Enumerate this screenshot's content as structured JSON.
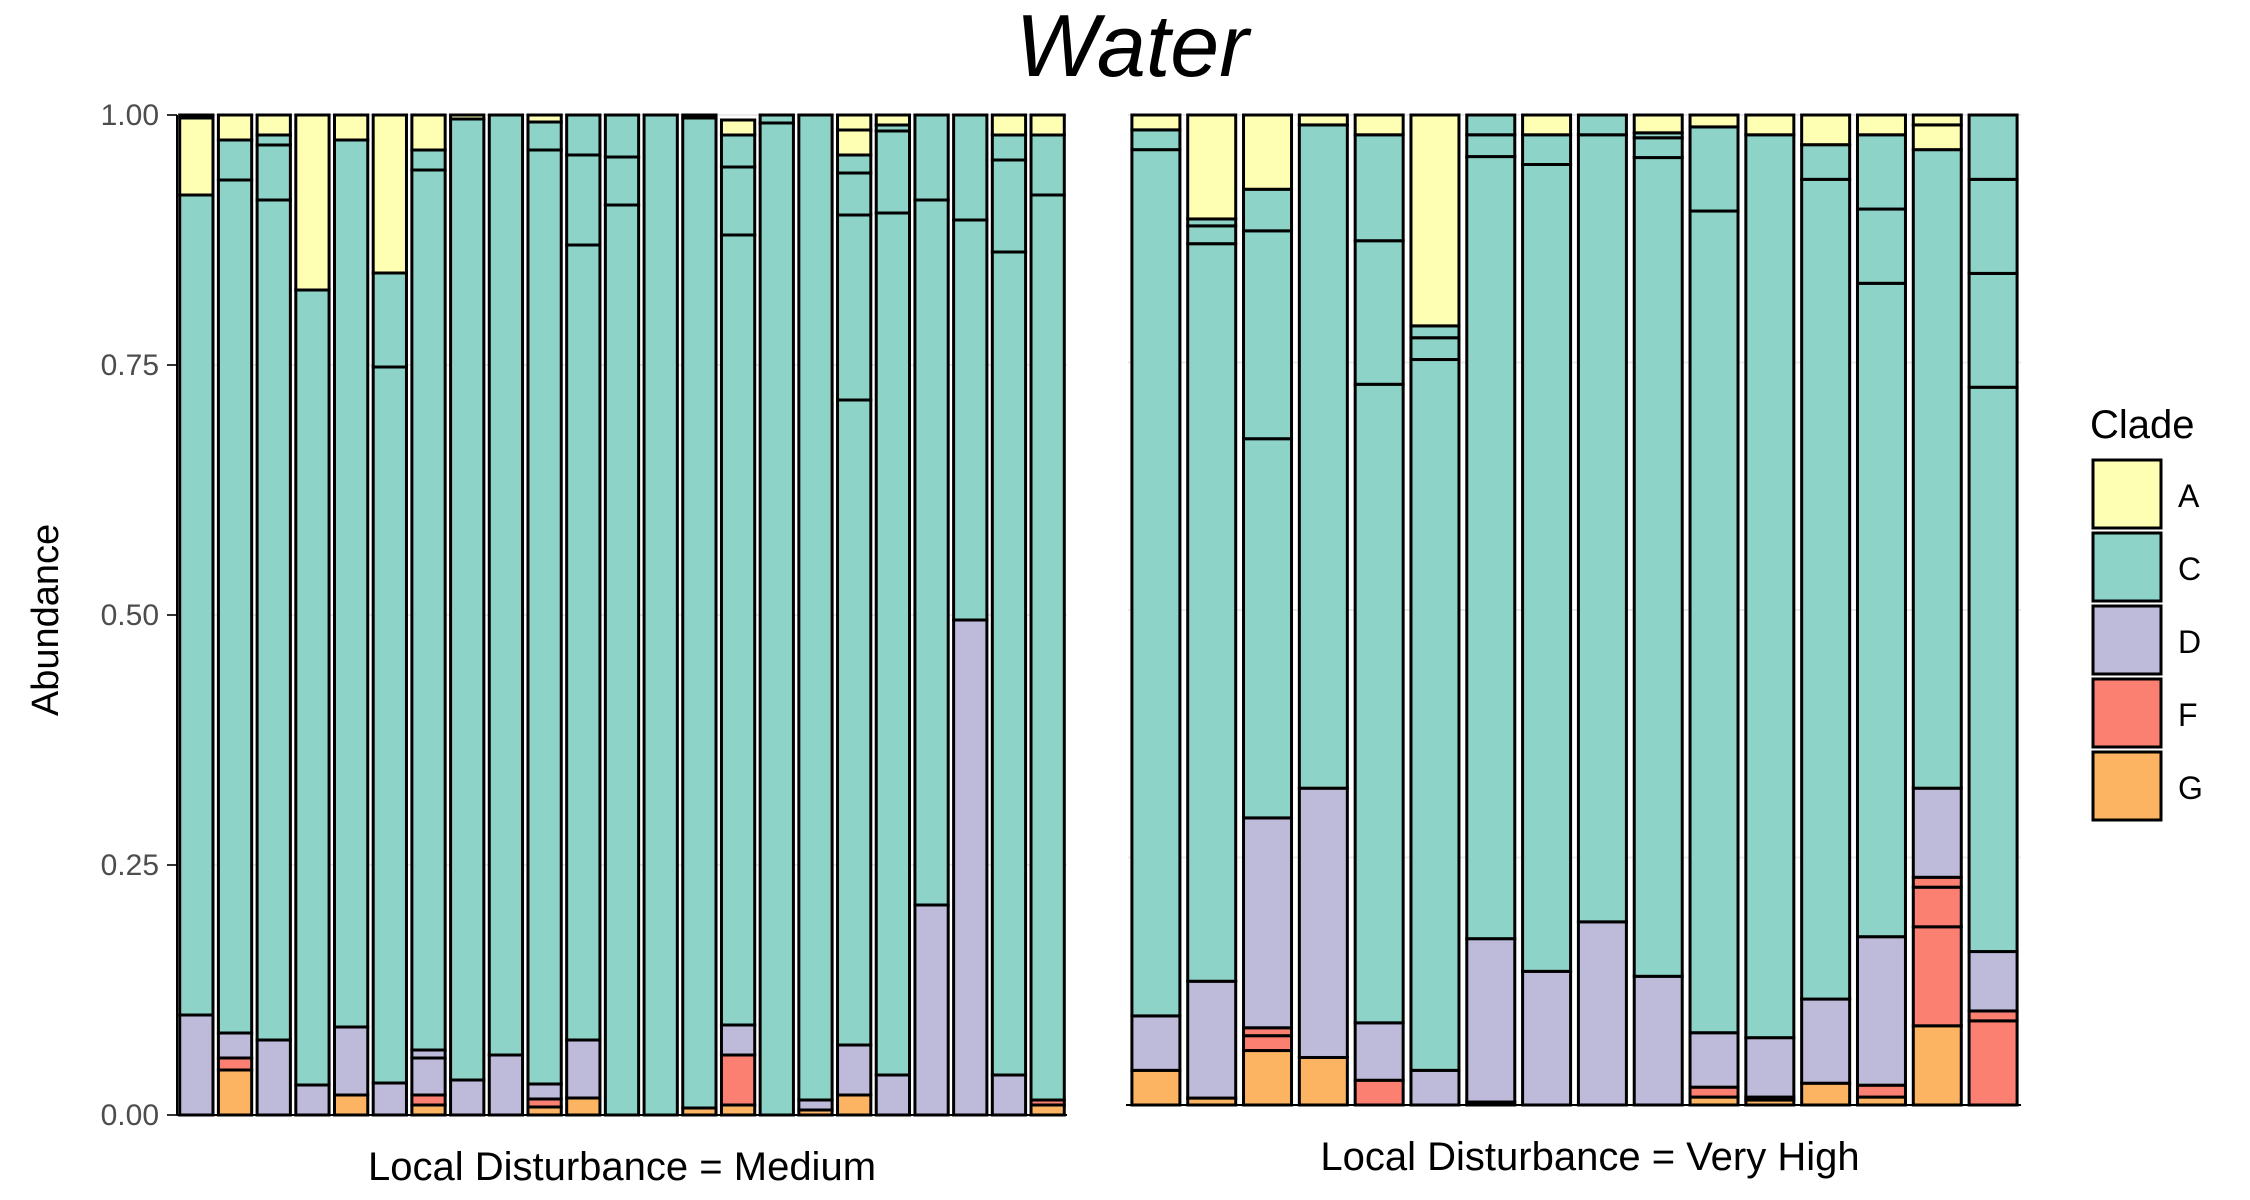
{
  "chart_data": {
    "type": "bar",
    "stacked": true,
    "title": "Water",
    "ylabel": "Abundance",
    "ylim": [
      0,
      1
    ],
    "y_ticks": [
      "0.00",
      "0.25",
      "0.50",
      "0.75",
      "1.00"
    ],
    "legend": {
      "title": "Clade",
      "position": "right",
      "entries": [
        {
          "key": "A",
          "color": "#FFFFB3"
        },
        {
          "key": "C",
          "color": "#8DD3C7"
        },
        {
          "key": "D",
          "color": "#BEBADA"
        },
        {
          "key": "F",
          "color": "#FB8072"
        },
        {
          "key": "G",
          "color": "#FDB462"
        }
      ]
    },
    "stack_order_bottom_to_top": [
      "G",
      "F",
      "D",
      "C",
      "A"
    ],
    "panels": [
      {
        "label": "Local Disturbance = Medium",
        "bars": [
          [
            [
              0.1,
              "D"
            ],
            [
              0.82,
              "C"
            ],
            [
              0.077,
              "A"
            ],
            [
              0.003,
              "A"
            ]
          ],
          [
            [
              0.045,
              "G"
            ],
            [
              0.012,
              "F"
            ],
            [
              0.025,
              "D"
            ],
            [
              0.853,
              "C"
            ],
            [
              0.04,
              "C"
            ],
            [
              0.025,
              "A"
            ]
          ],
          [
            [
              0.075,
              "D"
            ],
            [
              0.84,
              "C"
            ],
            [
              0.055,
              "C"
            ],
            [
              0.01,
              "C"
            ],
            [
              0.02,
              "A"
            ]
          ],
          [
            [
              0.03,
              "D"
            ],
            [
              0.795,
              "C"
            ],
            [
              0.175,
              "A"
            ]
          ],
          [
            [
              0.02,
              "G"
            ],
            [
              0.068,
              "D"
            ],
            [
              0.887,
              "C"
            ],
            [
              0.025,
              "A"
            ]
          ],
          [
            [
              0.032,
              "D"
            ],
            [
              0.716,
              "C"
            ],
            [
              0.094,
              "C"
            ],
            [
              0.158,
              "A"
            ]
          ],
          [
            [
              0.01,
              "G"
            ],
            [
              0.01,
              "F"
            ],
            [
              0.037,
              "D"
            ],
            [
              0.008,
              "D"
            ],
            [
              0.88,
              "C"
            ],
            [
              0.02,
              "C"
            ],
            [
              0.035,
              "A"
            ]
          ],
          [
            [
              0.035,
              "D"
            ],
            [
              0.961,
              "C"
            ],
            [
              0.004,
              "A"
            ]
          ],
          [
            [
              0.06,
              "D"
            ],
            [
              0.94,
              "C"
            ]
          ],
          [
            [
              0.008,
              "G"
            ],
            [
              0.008,
              "F"
            ],
            [
              0.015,
              "D"
            ],
            [
              0.934,
              "C"
            ],
            [
              0.028,
              "C"
            ],
            [
              0.007,
              "A"
            ]
          ],
          [
            [
              0.017,
              "G"
            ],
            [
              0.058,
              "D"
            ],
            [
              0.795,
              "C"
            ],
            [
              0.09,
              "C"
            ],
            [
              0.04,
              "C"
            ]
          ],
          [
            [
              0.91,
              "C"
            ],
            [
              0.048,
              "C"
            ],
            [
              0.042,
              "C"
            ]
          ],
          [
            [
              1.0,
              "C"
            ]
          ],
          [
            [
              0.007,
              "G"
            ],
            [
              0.99,
              "C"
            ],
            [
              0.003,
              "A"
            ]
          ],
          [
            [
              0.01,
              "G"
            ],
            [
              0.05,
              "F"
            ],
            [
              0.03,
              "D"
            ],
            [
              0.79,
              "C"
            ],
            [
              0.068,
              "C"
            ],
            [
              0.032,
              "C"
            ],
            [
              0.015,
              "A"
            ]
          ],
          [
            [
              0.992,
              "C"
            ],
            [
              0.008,
              "C"
            ]
          ],
          [
            [
              0.005,
              "G"
            ],
            [
              0.01,
              "D"
            ],
            [
              0.985,
              "C"
            ]
          ],
          [
            [
              0.02,
              "G"
            ],
            [
              0.05,
              "D"
            ],
            [
              0.645,
              "C"
            ],
            [
              0.185,
              "C"
            ],
            [
              0.042,
              "C"
            ],
            [
              0.018,
              "C"
            ],
            [
              0.025,
              "A"
            ],
            [
              0.015,
              "A"
            ]
          ],
          [
            [
              0.04,
              "D"
            ],
            [
              0.862,
              "C"
            ],
            [
              0.082,
              "C"
            ],
            [
              0.006,
              "C"
            ],
            [
              0.01,
              "A"
            ]
          ],
          [
            [
              0.21,
              "D"
            ],
            [
              0.705,
              "C"
            ],
            [
              0.085,
              "C"
            ]
          ],
          [
            [
              0.495,
              "D"
            ],
            [
              0.4,
              "C"
            ],
            [
              0.105,
              "C"
            ]
          ],
          [
            [
              0.04,
              "D"
            ],
            [
              0.823,
              "C"
            ],
            [
              0.092,
              "C"
            ],
            [
              0.025,
              "C"
            ],
            [
              0.02,
              "A"
            ]
          ],
          [
            [
              0.01,
              "G"
            ],
            [
              0.005,
              "F"
            ],
            [
              0.905,
              "C"
            ],
            [
              0.06,
              "C"
            ],
            [
              0.02,
              "A"
            ]
          ]
        ]
      },
      {
        "label": "Local Disturbance = Very High",
        "bars": [
          [
            [
              0.035,
              "G"
            ],
            [
              0.055,
              "D"
            ],
            [
              0.875,
              "C"
            ],
            [
              0.02,
              "C"
            ],
            [
              0.015,
              "A"
            ]
          ],
          [
            [
              0.007,
              "G"
            ],
            [
              0.118,
              "D"
            ],
            [
              0.745,
              "C"
            ],
            [
              0.018,
              "C"
            ],
            [
              0.007,
              "C"
            ],
            [
              0.105,
              "A"
            ]
          ],
          [
            [
              0.055,
              "G"
            ],
            [
              0.015,
              "F"
            ],
            [
              0.008,
              "F"
            ],
            [
              0.212,
              "D"
            ],
            [
              0.383,
              "C"
            ],
            [
              0.21,
              "C"
            ],
            [
              0.042,
              "C"
            ],
            [
              0.075,
              "A"
            ]
          ],
          [
            [
              0.048,
              "G"
            ],
            [
              0.272,
              "D"
            ],
            [
              0.67,
              "C"
            ],
            [
              0.01,
              "A"
            ]
          ],
          [
            [
              0.025,
              "F"
            ],
            [
              0.058,
              "D"
            ],
            [
              0.645,
              "C"
            ],
            [
              0.145,
              "C"
            ],
            [
              0.107,
              "C"
            ],
            [
              0.02,
              "A"
            ]
          ],
          [
            [
              0.035,
              "D"
            ],
            [
              0.718,
              "C"
            ],
            [
              0.022,
              "C"
            ],
            [
              0.012,
              "C"
            ],
            [
              0.213,
              "A"
            ]
          ],
          [
            [
              0.003,
              "G"
            ],
            [
              0.165,
              "D"
            ],
            [
              0.79,
              "C"
            ],
            [
              0.022,
              "C"
            ],
            [
              0.02,
              "C"
            ]
          ],
          [
            [
              0.135,
              "D"
            ],
            [
              0.815,
              "C"
            ],
            [
              0.03,
              "C"
            ],
            [
              0.02,
              "A"
            ]
          ],
          [
            [
              0.185,
              "D"
            ],
            [
              0.795,
              "C"
            ],
            [
              0.02,
              "C"
            ]
          ],
          [
            [
              0.13,
              "D"
            ],
            [
              0.827,
              "C"
            ],
            [
              0.02,
              "C"
            ],
            [
              0.005,
              "C"
            ],
            [
              0.018,
              "A"
            ]
          ],
          [
            [
              0.008,
              "G"
            ],
            [
              0.01,
              "F"
            ],
            [
              0.055,
              "D"
            ],
            [
              0.83,
              "C"
            ],
            [
              0.085,
              "C"
            ],
            [
              0.012,
              "A"
            ]
          ],
          [
            [
              0.005,
              "G"
            ],
            [
              0.003,
              "F"
            ],
            [
              0.06,
              "D"
            ],
            [
              0.912,
              "C"
            ],
            [
              0.02,
              "A"
            ]
          ],
          [
            [
              0.022,
              "G"
            ],
            [
              0.085,
              "D"
            ],
            [
              0.828,
              "C"
            ],
            [
              0.035,
              "C"
            ],
            [
              0.03,
              "A"
            ]
          ],
          [
            [
              0.008,
              "G"
            ],
            [
              0.012,
              "F"
            ],
            [
              0.15,
              "D"
            ],
            [
              0.66,
              "C"
            ],
            [
              0.075,
              "C"
            ],
            [
              0.075,
              "C"
            ],
            [
              0.02,
              "A"
            ]
          ],
          [
            [
              0.08,
              "G"
            ],
            [
              0.1,
              "F"
            ],
            [
              0.04,
              "F"
            ],
            [
              0.01,
              "F"
            ],
            [
              0.09,
              "D"
            ],
            [
              0.645,
              "C"
            ],
            [
              0.025,
              "A"
            ],
            [
              0.01,
              "A"
            ]
          ],
          [
            [
              0.085,
              "F"
            ],
            [
              0.01,
              "F"
            ],
            [
              0.06,
              "D"
            ],
            [
              0.57,
              "C"
            ],
            [
              0.115,
              "C"
            ],
            [
              0.095,
              "C"
            ],
            [
              0.065,
              "C"
            ]
          ]
        ]
      }
    ]
  }
}
